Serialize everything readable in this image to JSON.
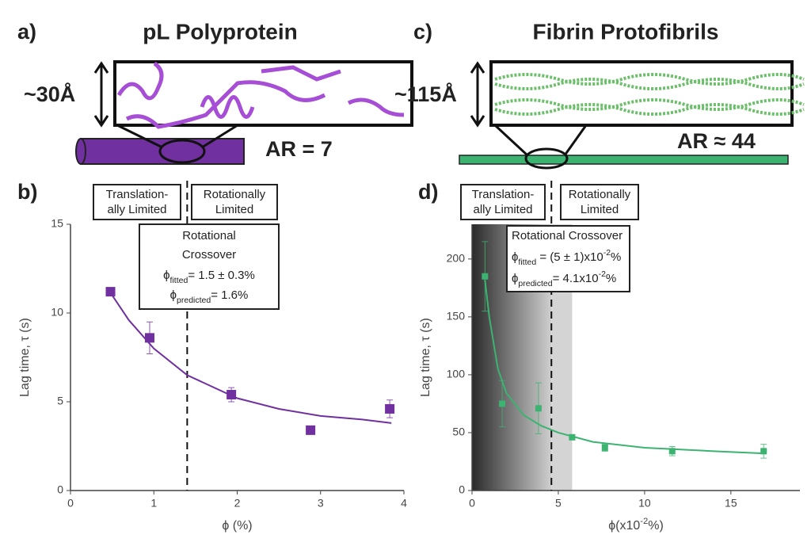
{
  "panels": [
    {
      "label": "a)",
      "title": "pL Polyprotein",
      "size": "~30Å",
      "ar": "AR = 7"
    },
    {
      "label": "c)",
      "title": "Fibrin Protofibrils",
      "size": "~115Å",
      "ar": "AR ≈ 44"
    }
  ],
  "chart_data": [
    {
      "type": "scatter",
      "panel_label": "b)",
      "xlabel": [
        {
          "text": "ϕ (%)"
        }
      ],
      "ylabel": "Lag time, τ (s)",
      "xlim": [
        0,
        4
      ],
      "ylim": [
        0,
        15
      ],
      "xticks": [
        0,
        1,
        2,
        3,
        4
      ],
      "yticks": [
        0,
        5,
        10,
        15
      ],
      "series": [
        {
          "style": "markers",
          "color": "#7030a0",
          "x": [
            0.48,
            0.95,
            1.93,
            2.88,
            3.83
          ],
          "values": [
            11.2,
            8.6,
            5.4,
            3.4,
            4.6
          ],
          "errors": [
            0.2,
            0.9,
            0.4,
            0.1,
            0.5
          ]
        },
        {
          "style": "line",
          "color": "#7030a0",
          "x": [
            0.5,
            0.7,
            1.0,
            1.4,
            2.0,
            2.5,
            3.0,
            3.5,
            3.85
          ],
          "values": [
            11.0,
            9.6,
            8.0,
            6.5,
            5.2,
            4.6,
            4.2,
            4.0,
            3.8
          ]
        }
      ],
      "reference_line_x": 1.4,
      "regions": [
        {
          "lines": [
            "Translation-",
            "ally Limited"
          ]
        },
        {
          "lines": [
            "Rotationally",
            "Limited"
          ]
        }
      ],
      "annotation_align": "center",
      "annotation": [
        [
          {
            "text": "Rotational"
          }
        ],
        [
          {
            "text": "Crossover"
          }
        ],
        [
          {
            "text": "ϕ"
          },
          {
            "text": "fitted",
            "shift": "sub"
          },
          {
            "text": "= 1.5 ± 0.3%"
          }
        ],
        [
          {
            "text": "ϕ"
          },
          {
            "text": "predicted",
            "shift": "sub"
          },
          {
            "text": "= 1.6%"
          }
        ]
      ]
    },
    {
      "type": "scatter",
      "panel_label": "d)",
      "xlabel": [
        {
          "text": "ϕ(x10"
        },
        {
          "text": "-2",
          "shift": "sup"
        },
        {
          "text": "%)"
        }
      ],
      "ylabel": "Lag time, τ (s)",
      "xlim": [
        0,
        19
      ],
      "ylim": [
        0,
        230
      ],
      "xticks": [
        0,
        5,
        10,
        15
      ],
      "yticks": [
        0,
        50,
        100,
        150,
        200
      ],
      "shaded_regions": [
        {
          "x": [
            0,
            4.6
          ],
          "fill": "gradient"
        },
        {
          "x": [
            4.6,
            5.8
          ],
          "fill": "#d4d4d4"
        }
      ],
      "series": [
        {
          "style": "markers",
          "color": "#3cb371",
          "x": [
            0.75,
            1.75,
            3.85,
            5.8,
            7.7,
            11.6,
            16.9
          ],
          "values": [
            185,
            75,
            71,
            46,
            37,
            34,
            34
          ],
          "errors": [
            30,
            20,
            22,
            2,
            3,
            4,
            6
          ]
        },
        {
          "style": "line",
          "color": "#3cb371",
          "x": [
            0.75,
            1.0,
            1.5,
            2.0,
            3.0,
            4.0,
            5.0,
            7.0,
            10.0,
            14.0,
            17.0
          ],
          "values": [
            182,
            150,
            105,
            84,
            65,
            56,
            50,
            42,
            37,
            34,
            32
          ]
        }
      ],
      "reference_line_x": 4.6,
      "regions": [
        {
          "lines": [
            "Translation-",
            "ally Limited"
          ]
        },
        {
          "lines": [
            "Rotationally",
            "Limited"
          ]
        }
      ],
      "annotation_align": "left",
      "annotation": [
        [
          {
            "text": "Rotational Crossover"
          }
        ],
        [
          {
            "text": "ϕ"
          },
          {
            "text": "fitted",
            "shift": "sub"
          },
          {
            "text": "      = (5 ± 1)x10"
          },
          {
            "text": "-2",
            "shift": "sup"
          },
          {
            "text": "%"
          }
        ],
        [
          {
            "text": "ϕ"
          },
          {
            "text": "predicted",
            "shift": "sub"
          },
          {
            "text": "= 4.1x10"
          },
          {
            "text": "-2",
            "shift": "sup"
          },
          {
            "text": "%"
          }
        ]
      ]
    }
  ]
}
